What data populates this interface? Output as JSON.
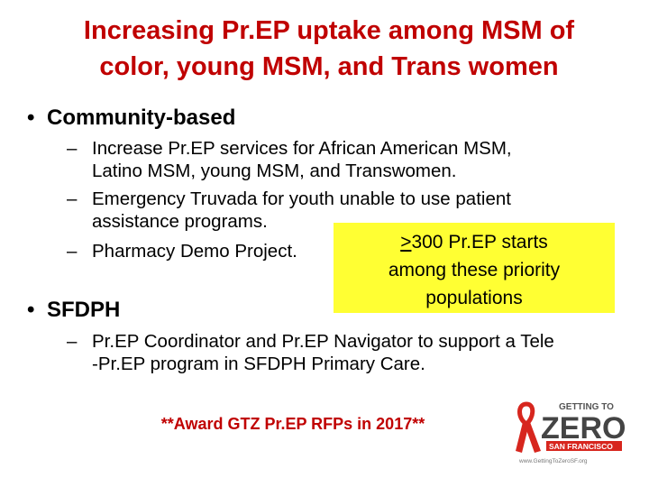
{
  "title": {
    "line1": "Increasing Pr.EP uptake among MSM of",
    "line2": "color, young MSM, and Trans women"
  },
  "bullets": [
    {
      "label": "Community-based",
      "items": [
        {
          "lines": [
            "Increase Pr.EP services for African American MSM,",
            "Latino MSM, young MSM, and Transwomen."
          ]
        },
        {
          "lines": [
            "Emergency Truvada for youth unable to use patient",
            "assistance programs."
          ]
        },
        {
          "lines": [
            "Pharmacy Demo Project."
          ]
        }
      ]
    },
    {
      "label": "SFDPH",
      "items": [
        {
          "lines": [
            "Pr.EP Coordinator and Pr.EP Navigator to support a Tele",
            "-Pr.EP program in SFDPH Primary Care."
          ]
        }
      ]
    }
  ],
  "callout": {
    "symbol": ">",
    "line1": "300 Pr.EP starts",
    "line2": "among these priority",
    "line3": "populations"
  },
  "footer": "**Award GTZ Pr.EP RFPs in 2017**",
  "logo": {
    "top": "GETTING TO",
    "big": "ZERO",
    "city": "SAN FRANCISCO",
    "url": "www.GettingToZeroSF.org"
  },
  "colors": {
    "title": "#c00000",
    "callout_bg": "#ffff33",
    "logo_red": "#d7261e"
  }
}
